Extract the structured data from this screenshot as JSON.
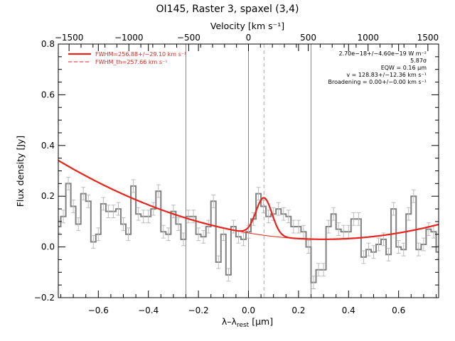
{
  "chart_data": {
    "type": "line",
    "title": "OI145, Raster 3, spaxel (3,4)",
    "top_axis_label": "Velocity [km s⁻¹]",
    "xlabel": "λ–λ_rest [µm]",
    "xlabel_main": "λ–λ",
    "xlabel_sub": "rest",
    "xlabel_unit": " [µm]",
    "ylabel": "Flux density [Jy]",
    "xlim": [
      -0.76,
      0.76
    ],
    "ylim": [
      -0.2,
      0.8
    ],
    "vlim": [
      -1590,
      1590
    ],
    "x_ticks": [
      -0.6,
      -0.4,
      -0.2,
      0.0,
      0.2,
      0.4,
      0.6
    ],
    "x_tick_labels": [
      "−0.6",
      "−0.4",
      "−0.2",
      "0.0",
      "0.2",
      "0.4",
      "0.6"
    ],
    "y_ticks": [
      -0.2,
      0.0,
      0.2,
      0.4,
      0.6,
      0.8
    ],
    "y_tick_labels": [
      "−0.2",
      "0.0",
      "0.2",
      "0.4",
      "0.6",
      "0.8"
    ],
    "v_ticks": [
      -1500,
      -1000,
      -500,
      0,
      500,
      1000,
      1500
    ],
    "v_tick_labels": [
      "−1500",
      "−1000",
      "−500",
      "0",
      "500",
      "1000",
      "1500"
    ],
    "vertical_lines_solid": [
      -0.25,
      0.0,
      0.25
    ],
    "vertical_line_dashed": 0.062,
    "legend": [
      {
        "label": "FWHM=256.88+/−29.10 km s⁻¹",
        "style": "solid",
        "color": "#e8231a"
      },
      {
        "label": "FWHM_th=257.66 km s⁻¹",
        "style": "dashed",
        "color": "#e8231a"
      }
    ],
    "annotations": [
      "2.70e−18+/−4.60e−19 W m⁻²",
      "5.87σ",
      "EQW = 0.16 µm",
      "v = 128.83+/−12.36 km s⁻¹",
      "Broadening = 0.00+/−0.00 km s⁻¹"
    ],
    "spectrum": {
      "name": "",
      "color": "#808080",
      "x": [
        -0.76,
        -0.74,
        -0.72,
        -0.7,
        -0.68,
        -0.66,
        -0.64,
        -0.62,
        -0.6,
        -0.58,
        -0.56,
        -0.54,
        -0.52,
        -0.5,
        -0.48,
        -0.46,
        -0.44,
        -0.42,
        -0.4,
        -0.38,
        -0.36,
        -0.34,
        -0.32,
        -0.3,
        -0.28,
        -0.26,
        -0.24,
        -0.22,
        -0.2,
        -0.18,
        -0.16,
        -0.14,
        -0.12,
        -0.1,
        -0.08,
        -0.06,
        -0.04,
        -0.02,
        0.0,
        0.02,
        0.04,
        0.06,
        0.08,
        0.1,
        0.12,
        0.14,
        0.16,
        0.18,
        0.2,
        0.22,
        0.24,
        0.26,
        0.28,
        0.3,
        0.32,
        0.34,
        0.36,
        0.38,
        0.4,
        0.42,
        0.44,
        0.46,
        0.48,
        0.5,
        0.52,
        0.54,
        0.56,
        0.58,
        0.6,
        0.62,
        0.64,
        0.66,
        0.68,
        0.7,
        0.72,
        0.74,
        0.76
      ],
      "y": [
        0.08,
        0.12,
        0.25,
        0.16,
        0.09,
        0.21,
        0.18,
        0.02,
        0.05,
        0.17,
        0.14,
        0.14,
        0.15,
        0.09,
        0.05,
        0.24,
        0.13,
        0.12,
        0.12,
        0.15,
        0.22,
        0.06,
        0.05,
        0.14,
        0.09,
        0.03,
        0.12,
        0.12,
        0.05,
        0.04,
        0.08,
        0.18,
        -0.06,
        0.05,
        -0.11,
        0.08,
        0.04,
        0.03,
        0.06,
        0.11,
        0.21,
        0.16,
        0.12,
        0.13,
        0.15,
        0.13,
        0.12,
        0.08,
        0.08,
        0.06,
        0.0,
        -0.14,
        -0.09,
        -0.09,
        0.08,
        0.13,
        0.07,
        0.06,
        0.06,
        0.11,
        0.11,
        -0.04,
        -0.01,
        -0.02,
        0.01,
        0.03,
        -0.03,
        0.15,
        0.0,
        -0.01,
        0.13,
        0.2,
        -0.01,
        0.01,
        0.07,
        0.06,
        -0.02
      ],
      "err": 0.025
    },
    "fit": {
      "color": "#e8231a",
      "baseline": {
        "x0": 0.3,
        "a": 0.0302,
        "b": 0.2768
      },
      "gaussian": {
        "amplitude": 0.148,
        "center": 0.062,
        "sigma": 0.032
      }
    }
  }
}
